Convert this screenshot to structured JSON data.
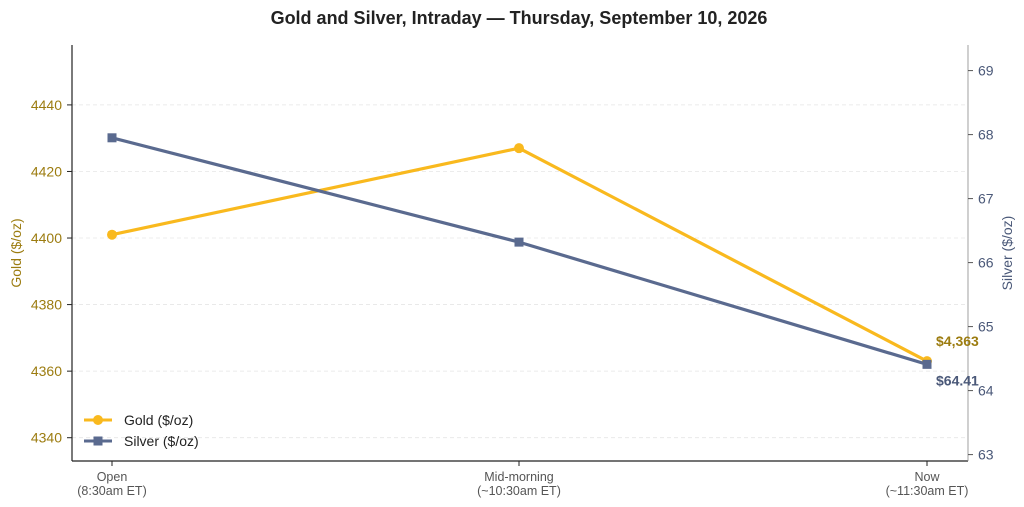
{
  "chart_data": {
    "type": "line",
    "title": "Gold and Silver, Intraday — Thursday, September 10, 2026",
    "categories": [
      [
        "Open",
        "(8:30am ET)"
      ],
      [
        "Mid-morning",
        "(~10:30am ET)"
      ],
      [
        "Now",
        "(~11:30am ET)"
      ]
    ],
    "y_left": {
      "label": "Gold ($/oz)",
      "range": [
        4333,
        4458
      ],
      "ticks": [
        4340,
        4360,
        4380,
        4400,
        4420,
        4440
      ]
    },
    "y_right": {
      "label": "Silver ($/oz)",
      "range": [
        62.9,
        69.4
      ],
      "ticks": [
        63,
        64,
        65,
        66,
        67,
        68,
        69
      ]
    },
    "series": [
      {
        "name": "Gold ($/oz)",
        "axis": "left",
        "values": [
          4401,
          4427,
          4363
        ],
        "color": "#F9B91E",
        "marker": "circle",
        "end_label": "$4,363"
      },
      {
        "name": "Silver ($/oz)",
        "axis": "right",
        "values": [
          67.95,
          66.32,
          64.41
        ],
        "color": "#5A6A8F",
        "marker": "square",
        "end_label": "$64.41"
      }
    ],
    "grid": "horizontal-dashed",
    "legend": "bottom-left",
    "colors": {
      "gold_axis_text": "#9C7C10",
      "silver_axis_text": "#4A5878"
    }
  }
}
